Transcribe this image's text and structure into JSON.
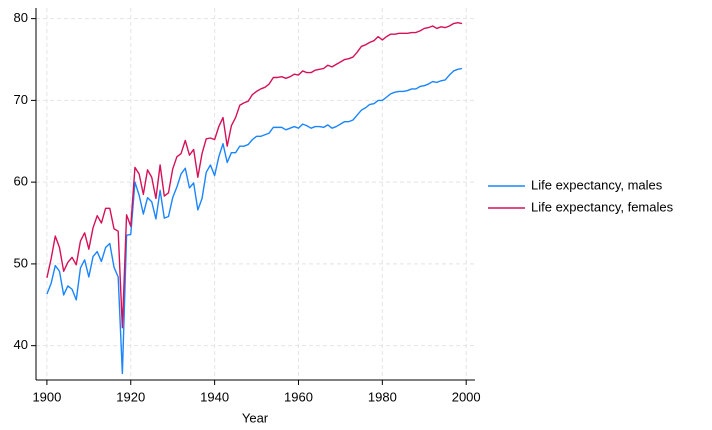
{
  "chart_data": {
    "type": "line",
    "x_label": "Year",
    "x": [
      1900,
      1901,
      1902,
      1903,
      1904,
      1905,
      1906,
      1907,
      1908,
      1909,
      1910,
      1911,
      1912,
      1913,
      1914,
      1915,
      1916,
      1917,
      1918,
      1919,
      1920,
      1921,
      1922,
      1923,
      1924,
      1925,
      1926,
      1927,
      1928,
      1929,
      1930,
      1931,
      1932,
      1933,
      1934,
      1935,
      1936,
      1937,
      1938,
      1939,
      1940,
      1941,
      1942,
      1943,
      1944,
      1945,
      1946,
      1947,
      1948,
      1949,
      1950,
      1951,
      1952,
      1953,
      1954,
      1955,
      1956,
      1957,
      1958,
      1959,
      1960,
      1961,
      1962,
      1963,
      1964,
      1965,
      1966,
      1967,
      1968,
      1969,
      1970,
      1971,
      1972,
      1973,
      1974,
      1975,
      1976,
      1977,
      1978,
      1979,
      1980,
      1981,
      1982,
      1983,
      1984,
      1985,
      1986,
      1987,
      1988,
      1989,
      1990,
      1991,
      1992,
      1993,
      1994,
      1995,
      1996,
      1997,
      1998,
      1999
    ],
    "series": [
      {
        "name": "Life expectancy, males",
        "color": "#1a85ff",
        "values": [
          46.3,
          47.6,
          49.8,
          49.1,
          46.2,
          47.3,
          46.9,
          45.6,
          49.5,
          50.5,
          48.4,
          50.9,
          51.5,
          50.3,
          52.0,
          52.5,
          49.6,
          48.4,
          36.6,
          53.5,
          53.6,
          60.0,
          58.4,
          56.1,
          58.1,
          57.6,
          55.5,
          59.0,
          55.6,
          55.8,
          58.1,
          59.4,
          61.0,
          61.7,
          59.3,
          59.9,
          56.6,
          58.0,
          61.2,
          62.1,
          60.8,
          63.1,
          64.7,
          62.4,
          63.6,
          63.6,
          64.4,
          64.4,
          64.6,
          65.2,
          65.6,
          65.6,
          65.8,
          66.0,
          66.7,
          66.7,
          66.7,
          66.4,
          66.6,
          66.8,
          66.6,
          67.1,
          66.9,
          66.6,
          66.8,
          66.8,
          66.7,
          67.0,
          66.6,
          66.8,
          67.1,
          67.4,
          67.4,
          67.6,
          68.2,
          68.8,
          69.1,
          69.5,
          69.6,
          70.0,
          70.0,
          70.4,
          70.8,
          71.0,
          71.1,
          71.1,
          71.2,
          71.4,
          71.4,
          71.7,
          71.8,
          72.0,
          72.3,
          72.2,
          72.4,
          72.5,
          73.1,
          73.6,
          73.8,
          73.9
        ]
      },
      {
        "name": "Life expectancy, females",
        "color": "#d41159",
        "values": [
          48.3,
          50.6,
          53.4,
          52.0,
          49.1,
          50.2,
          50.8,
          49.9,
          52.8,
          53.8,
          51.8,
          54.4,
          55.9,
          55.0,
          56.8,
          56.8,
          54.3,
          54.0,
          42.2,
          56.0,
          54.6,
          61.8,
          61.0,
          58.5,
          61.5,
          60.6,
          58.0,
          62.1,
          58.3,
          58.7,
          61.6,
          63.1,
          63.5,
          65.1,
          63.3,
          64.0,
          60.6,
          63.5,
          65.3,
          65.4,
          65.2,
          66.8,
          67.9,
          64.4,
          66.9,
          67.9,
          69.4,
          69.7,
          69.9,
          70.7,
          71.1,
          71.4,
          71.6,
          72.0,
          72.8,
          72.8,
          72.9,
          72.7,
          72.9,
          73.2,
          73.1,
          73.6,
          73.4,
          73.4,
          73.7,
          73.8,
          73.9,
          74.3,
          74.1,
          74.4,
          74.7,
          75.0,
          75.1,
          75.3,
          75.9,
          76.6,
          76.8,
          77.1,
          77.3,
          77.8,
          77.4,
          77.8,
          78.1,
          78.1,
          78.2,
          78.2,
          78.2,
          78.3,
          78.3,
          78.5,
          78.8,
          78.9,
          79.1,
          78.8,
          79.0,
          78.9,
          79.1,
          79.4,
          79.5,
          79.4
        ]
      }
    ],
    "xlim": [
      1897.4,
      2002.1
    ],
    "xticks": [
      1900,
      1920,
      1940,
      1960,
      1980,
      2000
    ],
    "ylim": [
      35.8,
      81.3
    ],
    "yticks": [
      40,
      50,
      60,
      70,
      80
    ],
    "grid": true,
    "legend": "right"
  }
}
